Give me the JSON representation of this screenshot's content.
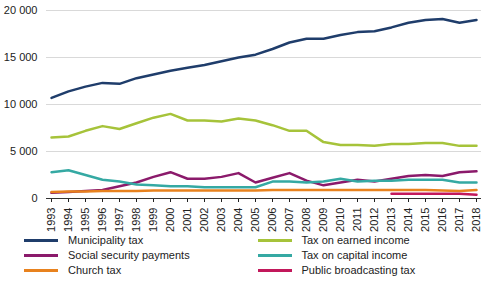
{
  "chart_data": {
    "type": "line",
    "categories": [
      "1993",
      "1994",
      "1995",
      "1996",
      "1997",
      "1998",
      "1999",
      "2000",
      "2001",
      "2002",
      "2003",
      "2004",
      "2005",
      "2006",
      "2007",
      "2008",
      "2009",
      "2010",
      "2011",
      "2012",
      "2013",
      "2014",
      "2015",
      "2016",
      "2017",
      "2018"
    ],
    "ylim": [
      0,
      20000
    ],
    "yticks": [
      0,
      {
        "value": 5000,
        "label": "5 000"
      },
      {
        "value": 10000,
        "label": "10 000"
      },
      {
        "value": 15000,
        "label": "15 000"
      },
      {
        "value": 20000,
        "label": "20 000"
      }
    ],
    "grid": true,
    "series": [
      {
        "name": "Municipality tax",
        "color": "#1f3d6b",
        "values": [
          10700,
          11400,
          11900,
          12300,
          12200,
          12800,
          13200,
          13600,
          13900,
          14200,
          14600,
          15000,
          15300,
          15900,
          16600,
          17000,
          17000,
          17400,
          17700,
          17800,
          18200,
          18700,
          19000,
          19100,
          18700,
          19000
        ]
      },
      {
        "name": "Tax on earned income",
        "color": "#a6c33a",
        "values": [
          6500,
          6600,
          7200,
          7700,
          7400,
          8000,
          8600,
          9000,
          8300,
          8300,
          8200,
          8500,
          8300,
          7800,
          7200,
          7200,
          6000,
          5700,
          5700,
          5600,
          5800,
          5800,
          5900,
          5900,
          5600,
          5600
        ]
      },
      {
        "name": "Social security payments",
        "color": "#8b1a6b",
        "values": [
          600,
          700,
          800,
          900,
          1300,
          1700,
          2300,
          2800,
          2100,
          2100,
          2300,
          2700,
          1700,
          2200,
          2700,
          1900,
          1400,
          1700,
          2000,
          1800,
          2100,
          2400,
          2500,
          2400,
          2800,
          2900
        ]
      },
      {
        "name": "Tax on capital income",
        "color": "#35a9a3",
        "values": [
          2800,
          3000,
          2500,
          2000,
          1800,
          1500,
          1400,
          1300,
          1300,
          1200,
          1200,
          1200,
          1200,
          1800,
          1800,
          1700,
          1800,
          2100,
          1800,
          1900,
          1900,
          2000,
          2000,
          2000,
          1700,
          1700
        ]
      },
      {
        "name": "Church tax",
        "color": "#e8821e",
        "values": [
          700,
          750,
          750,
          800,
          800,
          800,
          850,
          850,
          850,
          850,
          850,
          850,
          850,
          900,
          900,
          900,
          900,
          900,
          900,
          900,
          900,
          900,
          900,
          850,
          800,
          900
        ]
      },
      {
        "name": "Public broadcasting tax",
        "color": "#c2185b",
        "values": [
          null,
          null,
          null,
          null,
          null,
          null,
          null,
          null,
          null,
          null,
          null,
          null,
          null,
          null,
          null,
          null,
          null,
          null,
          null,
          null,
          500,
          500,
          500,
          500,
          500,
          400
        ]
      }
    ]
  }
}
